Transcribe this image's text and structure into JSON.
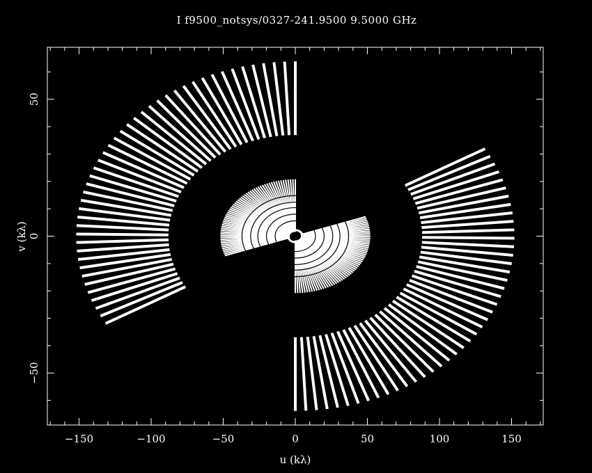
{
  "chart_data": {
    "type": "scatter",
    "title": "I f9500_notsys/0327-241.9500  9.5000 GHz",
    "xlabel": "u (kλ)",
    "ylabel": "v (kλ)",
    "xlim": [
      -172,
      172
    ],
    "ylim": [
      -69,
      69
    ],
    "x_ticks": [
      -150,
      -100,
      -50,
      0,
      50,
      100,
      150
    ],
    "y_ticks": [
      -50,
      0,
      50
    ],
    "x_tick_labels": [
      "−150",
      "−100",
      "−50",
      "0",
      "50",
      "100",
      "150"
    ],
    "y_tick_labels": [
      "−50",
      "0",
      "50"
    ],
    "grid": false,
    "series": [
      {
        "description": "outer uv-track arcs (pairs A, B); each track is a radial strip from inner to outer radius, mirrored through the origin",
        "strip_inner_radius_kλ": 88,
        "strip_outer_radius_kλ": 152,
        "arc_position_angle_deg": [
          0,
          120
        ],
        "tracks": 44
      },
      {
        "description": "inner uv-track arcs",
        "strip_inner_radius_kλ": 4,
        "strip_outer_radius_kλ": 52,
        "arc_position_angle_deg": [
          0,
          110
        ],
        "tracks": 60
      }
    ],
    "colors": {
      "background": "#000000",
      "foreground": "#ffffff"
    }
  }
}
